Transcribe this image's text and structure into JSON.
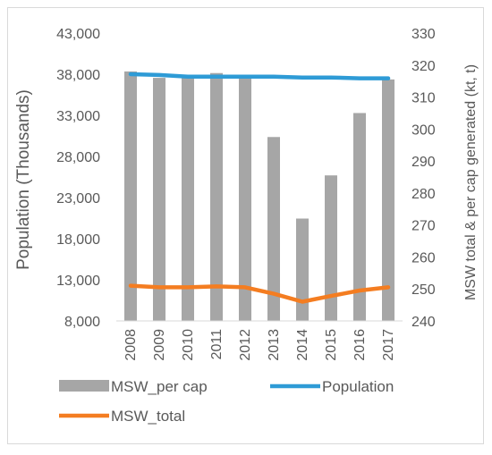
{
  "chart_data": {
    "type": "bar",
    "categories": [
      "2008",
      "2009",
      "2010",
      "2011",
      "2012",
      "2013",
      "2014",
      "2015",
      "2016",
      "2017"
    ],
    "series": [
      {
        "name": "MSW_per cap",
        "type": "bar",
        "axis": "right",
        "color": "#a6a6a6",
        "values": [
          318,
          316,
          316,
          317.5,
          317,
          297.5,
          272,
          285.5,
          305,
          315.5
        ]
      },
      {
        "name": "Population",
        "type": "line",
        "axis": "left",
        "color": "#2e9bd6",
        "values": [
          38000,
          37900,
          37700,
          37700,
          37700,
          37700,
          37600,
          37600,
          37500,
          37500
        ]
      },
      {
        "name": "MSW_total",
        "type": "line",
        "axis": "right",
        "color": "#f47d21",
        "values": [
          251,
          250.5,
          250.5,
          250.8,
          250.5,
          248.5,
          246,
          247.8,
          249.5,
          250.5
        ]
      }
    ],
    "ylabel_left": "Population (Thousands)",
    "ylabel_right": "MSW total & per cap generated (kt, t)",
    "ylim_left": [
      8000,
      43000
    ],
    "yticks_left": [
      "8,000",
      "13,000",
      "18,000",
      "23,000",
      "28,000",
      "33,000",
      "38,000",
      "43,000"
    ],
    "ylim_right": [
      240,
      330
    ],
    "yticks_right": [
      "240",
      "250",
      "260",
      "270",
      "280",
      "290",
      "300",
      "310",
      "320",
      "330"
    ],
    "grid": false,
    "legend_position": "bottom"
  }
}
